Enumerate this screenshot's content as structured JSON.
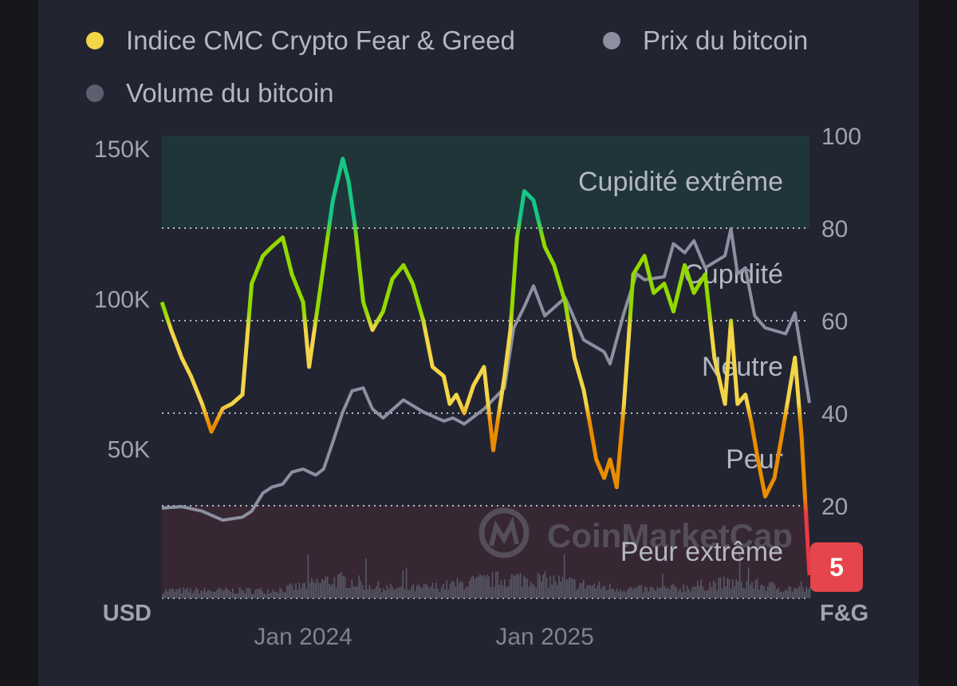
{
  "legend": {
    "fg_label": "Indice CMC Crypto Fear & Greed",
    "price_label": "Prix du bitcoin",
    "volume_label": "Volume du bitcoin"
  },
  "colors": {
    "background": "#222531",
    "fg_legend": "#f3d548",
    "price": "#8c90a0",
    "volume": "#5c5f6e",
    "extreme_greed": "#16c784",
    "greed": "#93d900",
    "neutral": "#f3d548",
    "fear": "#ea8c00",
    "extreme_fear": "#ea3943",
    "badge": "#e5454c"
  },
  "watermark": "CoinMarketCap",
  "current_badge": "5",
  "chart_data": {
    "type": "line",
    "left_axis": {
      "label": "USD",
      "ticks": [
        "150K",
        "100K",
        "50K"
      ],
      "tick_values": [
        150000,
        100000,
        50000
      ],
      "range": [
        0,
        150000
      ]
    },
    "right_axis": {
      "label": "F&G",
      "ticks": [
        "100",
        "80",
        "60",
        "40",
        "20"
      ],
      "tick_values": [
        100,
        80,
        60,
        40,
        20
      ],
      "range": [
        0,
        100
      ]
    },
    "x_ticks": [
      "Jan 2024",
      "Jan 2025"
    ],
    "x_tick_dates": [
      "2024-01-01",
      "2025-01-01"
    ],
    "x_range": [
      "2023-06-01",
      "2026-02-06"
    ],
    "zones": [
      {
        "label": "Cupidité extrême",
        "from": 80,
        "to": 100
      },
      {
        "label": "Cupidité",
        "from": 60,
        "to": 80
      },
      {
        "label": "Neutre",
        "from": 40,
        "to": 60
      },
      {
        "label": "Peur",
        "from": 20,
        "to": 40
      },
      {
        "label": "Peur extrême",
        "from": 0,
        "to": 20
      }
    ],
    "fear_greed": {
      "dates": [
        "2023-06-01",
        "2023-06-15",
        "2023-07-01",
        "2023-07-15",
        "2023-08-01",
        "2023-08-15",
        "2023-09-01",
        "2023-09-15",
        "2023-10-01",
        "2023-10-15",
        "2023-11-01",
        "2023-11-15",
        "2023-12-01",
        "2023-12-15",
        "2024-01-01",
        "2024-01-10",
        "2024-01-20",
        "2024-02-01",
        "2024-02-15",
        "2024-03-01",
        "2024-03-10",
        "2024-03-20",
        "2024-04-01",
        "2024-04-15",
        "2024-05-01",
        "2024-05-15",
        "2024-06-01",
        "2024-06-15",
        "2024-07-01",
        "2024-07-15",
        "2024-08-01",
        "2024-08-10",
        "2024-08-20",
        "2024-09-01",
        "2024-09-15",
        "2024-10-01",
        "2024-10-15",
        "2024-11-01",
        "2024-11-10",
        "2024-11-20",
        "2024-12-01",
        "2024-12-15",
        "2025-01-01",
        "2025-01-15",
        "2025-02-01",
        "2025-02-15",
        "2025-03-01",
        "2025-03-10",
        "2025-03-20",
        "2025-04-01",
        "2025-04-10",
        "2025-04-20",
        "2025-05-01",
        "2025-05-15",
        "2025-06-01",
        "2025-06-15",
        "2025-07-01",
        "2025-07-15",
        "2025-08-01",
        "2025-08-15",
        "2025-09-01",
        "2025-09-15",
        "2025-10-01",
        "2025-10-10",
        "2025-10-20",
        "2025-11-01",
        "2025-11-10",
        "2025-11-20",
        "2025-12-01",
        "2025-12-15",
        "2026-01-01",
        "2026-01-15",
        "2026-01-25",
        "2026-02-06"
      ],
      "values": [
        64,
        58,
        52,
        48,
        42,
        36,
        41,
        42,
        44,
        68,
        74,
        76,
        78,
        70,
        64,
        50,
        60,
        72,
        86,
        95,
        90,
        80,
        64,
        58,
        62,
        69,
        72,
        68,
        60,
        50,
        48,
        42,
        44,
        40,
        46,
        50,
        32,
        48,
        58,
        78,
        88,
        86,
        76,
        72,
        64,
        52,
        45,
        38,
        30,
        26,
        30,
        24,
        42,
        70,
        74,
        66,
        68,
        62,
        72,
        66,
        70,
        52,
        42,
        60,
        42,
        44,
        38,
        30,
        22,
        26,
        40,
        52,
        35,
        5
      ]
    },
    "price_usd": {
      "dates": [
        "2023-06-01",
        "2023-07-01",
        "2023-08-01",
        "2023-09-01",
        "2023-10-01",
        "2023-10-15",
        "2023-11-01",
        "2023-11-15",
        "2023-12-01",
        "2023-12-15",
        "2024-01-01",
        "2024-01-20",
        "2024-02-01",
        "2024-02-15",
        "2024-03-01",
        "2024-03-15",
        "2024-04-01",
        "2024-04-15",
        "2024-05-01",
        "2024-06-01",
        "2024-07-01",
        "2024-08-01",
        "2024-08-15",
        "2024-09-01",
        "2024-10-01",
        "2024-11-01",
        "2024-11-15",
        "2024-12-01",
        "2024-12-15",
        "2025-01-01",
        "2025-02-01",
        "2025-03-01",
        "2025-04-01",
        "2025-04-10",
        "2025-05-01",
        "2025-05-20",
        "2025-06-01",
        "2025-07-01",
        "2025-07-15",
        "2025-08-01",
        "2025-08-15",
        "2025-09-01",
        "2025-10-01",
        "2025-10-10",
        "2025-10-20",
        "2025-11-01",
        "2025-11-15",
        "2025-12-01",
        "2026-01-01",
        "2026-01-15",
        "2026-02-06"
      ],
      "values": [
        30000,
        30500,
        29000,
        26000,
        27000,
        29000,
        35000,
        37000,
        38000,
        42000,
        43000,
        41000,
        43000,
        52000,
        62000,
        69000,
        70000,
        63000,
        60000,
        66000,
        62000,
        59000,
        60000,
        58000,
        63000,
        70000,
        90000,
        97000,
        104000,
        94000,
        100000,
        86000,
        82000,
        78000,
        95000,
        108000,
        106000,
        107000,
        118000,
        115000,
        119000,
        110000,
        114000,
        123000,
        108000,
        110000,
        94000,
        90000,
        88000,
        95000,
        65000
      ]
    },
    "volume_note": "daily trading volume histogram along the bottom of the chart (unlabelled scale)"
  }
}
